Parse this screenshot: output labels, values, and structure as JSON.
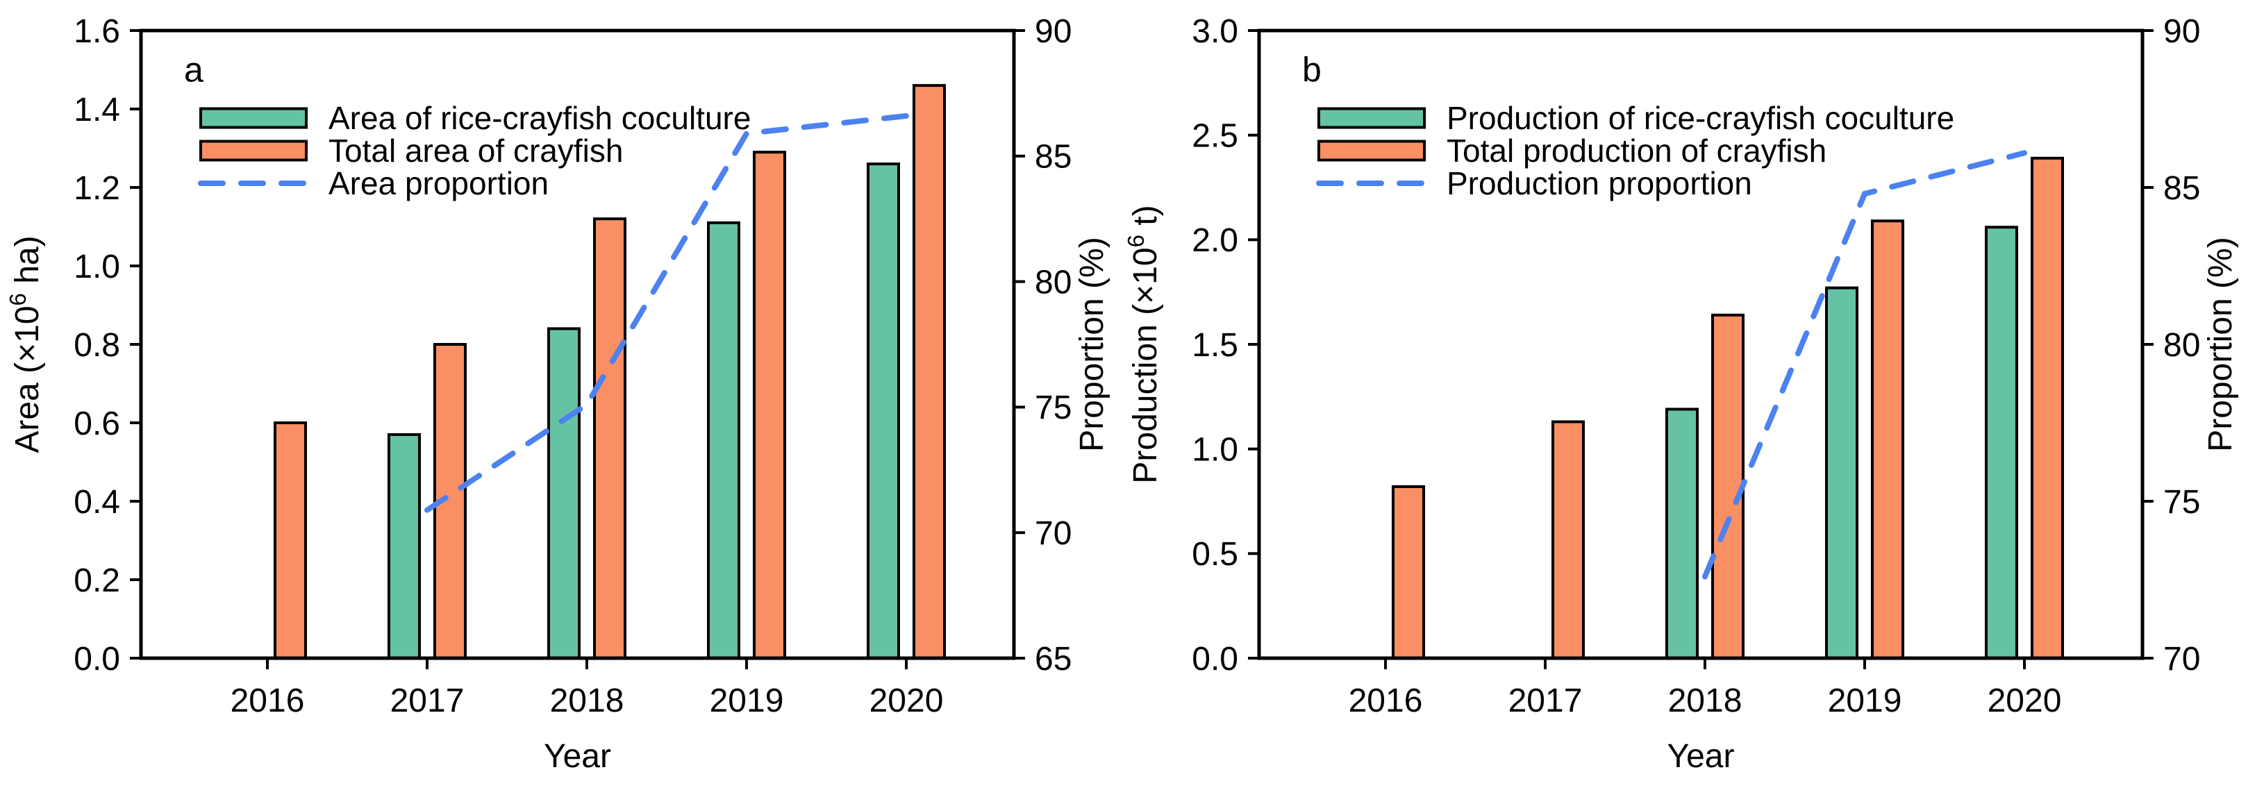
{
  "figure": {
    "background": "#ffffff",
    "x_axis_title": "Year",
    "x_categories": [
      "2016",
      "2017",
      "2018",
      "2019",
      "2020"
    ]
  },
  "colors": {
    "coculture_bar": "#66C2A5",
    "total_bar": "#FA8F63",
    "proportion_line": "#4C82F0",
    "axis": "#000000",
    "background": "#ffffff"
  },
  "chart_data": [
    {
      "type": "bar+line",
      "panel_label": "a",
      "categories": [
        "2016",
        "2017",
        "2018",
        "2019",
        "2020"
      ],
      "series": [
        {
          "name": "Area of rice-crayfish coculture",
          "type": "bar",
          "axis": "left",
          "color": "#66C2A5",
          "values": [
            null,
            0.57,
            0.84,
            1.11,
            1.26
          ]
        },
        {
          "name": "Total area of crayfish",
          "type": "bar",
          "axis": "left",
          "color": "#FA8F63",
          "values": [
            0.6,
            0.8,
            1.12,
            1.29,
            1.46
          ]
        },
        {
          "name": "Area proportion",
          "type": "dashed-line",
          "axis": "right",
          "color": "#4C82F0",
          "values": [
            null,
            70.9,
            75.1,
            85.9,
            86.6
          ]
        }
      ],
      "left_axis": {
        "label_text": "Area (×10⁶ ha)",
        "label_parts": {
          "pre": "Area (×10",
          "sup": "6",
          "post": " ha)"
        },
        "min": 0.0,
        "max": 1.6,
        "ticks": [
          "0.0",
          "0.2",
          "0.4",
          "0.6",
          "0.8",
          "1.0",
          "1.2",
          "1.4",
          "1.6"
        ]
      },
      "right_axis": {
        "label_text": "Proportion (%)",
        "label_parts": {
          "pre": "Proportion (%)",
          "sup": "",
          "post": ""
        },
        "min": 65,
        "max": 90,
        "ticks": [
          "65",
          "70",
          "75",
          "80",
          "85",
          "90"
        ]
      },
      "x_axis": {
        "label": "Year"
      },
      "legend_position": "top-left",
      "grid": "off"
    },
    {
      "type": "bar+line",
      "panel_label": "b",
      "categories": [
        "2016",
        "2017",
        "2018",
        "2019",
        "2020"
      ],
      "series": [
        {
          "name": "Production of rice-crayfish coculture",
          "type": "bar",
          "axis": "left",
          "color": "#66C2A5",
          "values": [
            null,
            null,
            1.19,
            1.77,
            2.06
          ]
        },
        {
          "name": "Total production of crayfish",
          "type": "bar",
          "axis": "left",
          "color": "#FA8F63",
          "values": [
            0.82,
            1.13,
            1.64,
            2.09,
            2.39
          ]
        },
        {
          "name": "Production proportion",
          "type": "dashed-line",
          "axis": "right",
          "color": "#4C82F0",
          "values": [
            null,
            null,
            72.6,
            84.8,
            86.1
          ]
        }
      ],
      "left_axis": {
        "label_text": "Production (×10⁶ t)",
        "label_parts": {
          "pre": "Production (×10",
          "sup": "6",
          "post": " t)"
        },
        "min": 0.0,
        "max": 3.0,
        "ticks": [
          "0.0",
          "0.5",
          "1.0",
          "1.5",
          "2.0",
          "2.5",
          "3.0"
        ]
      },
      "right_axis": {
        "label_text": "Proportion (%)",
        "label_parts": {
          "pre": "Proportion (%)",
          "sup": "",
          "post": ""
        },
        "min": 70,
        "max": 90,
        "ticks": [
          "70",
          "75",
          "80",
          "85",
          "90"
        ]
      },
      "x_axis": {
        "label": "Year"
      },
      "legend_position": "top-left",
      "grid": "off"
    }
  ]
}
